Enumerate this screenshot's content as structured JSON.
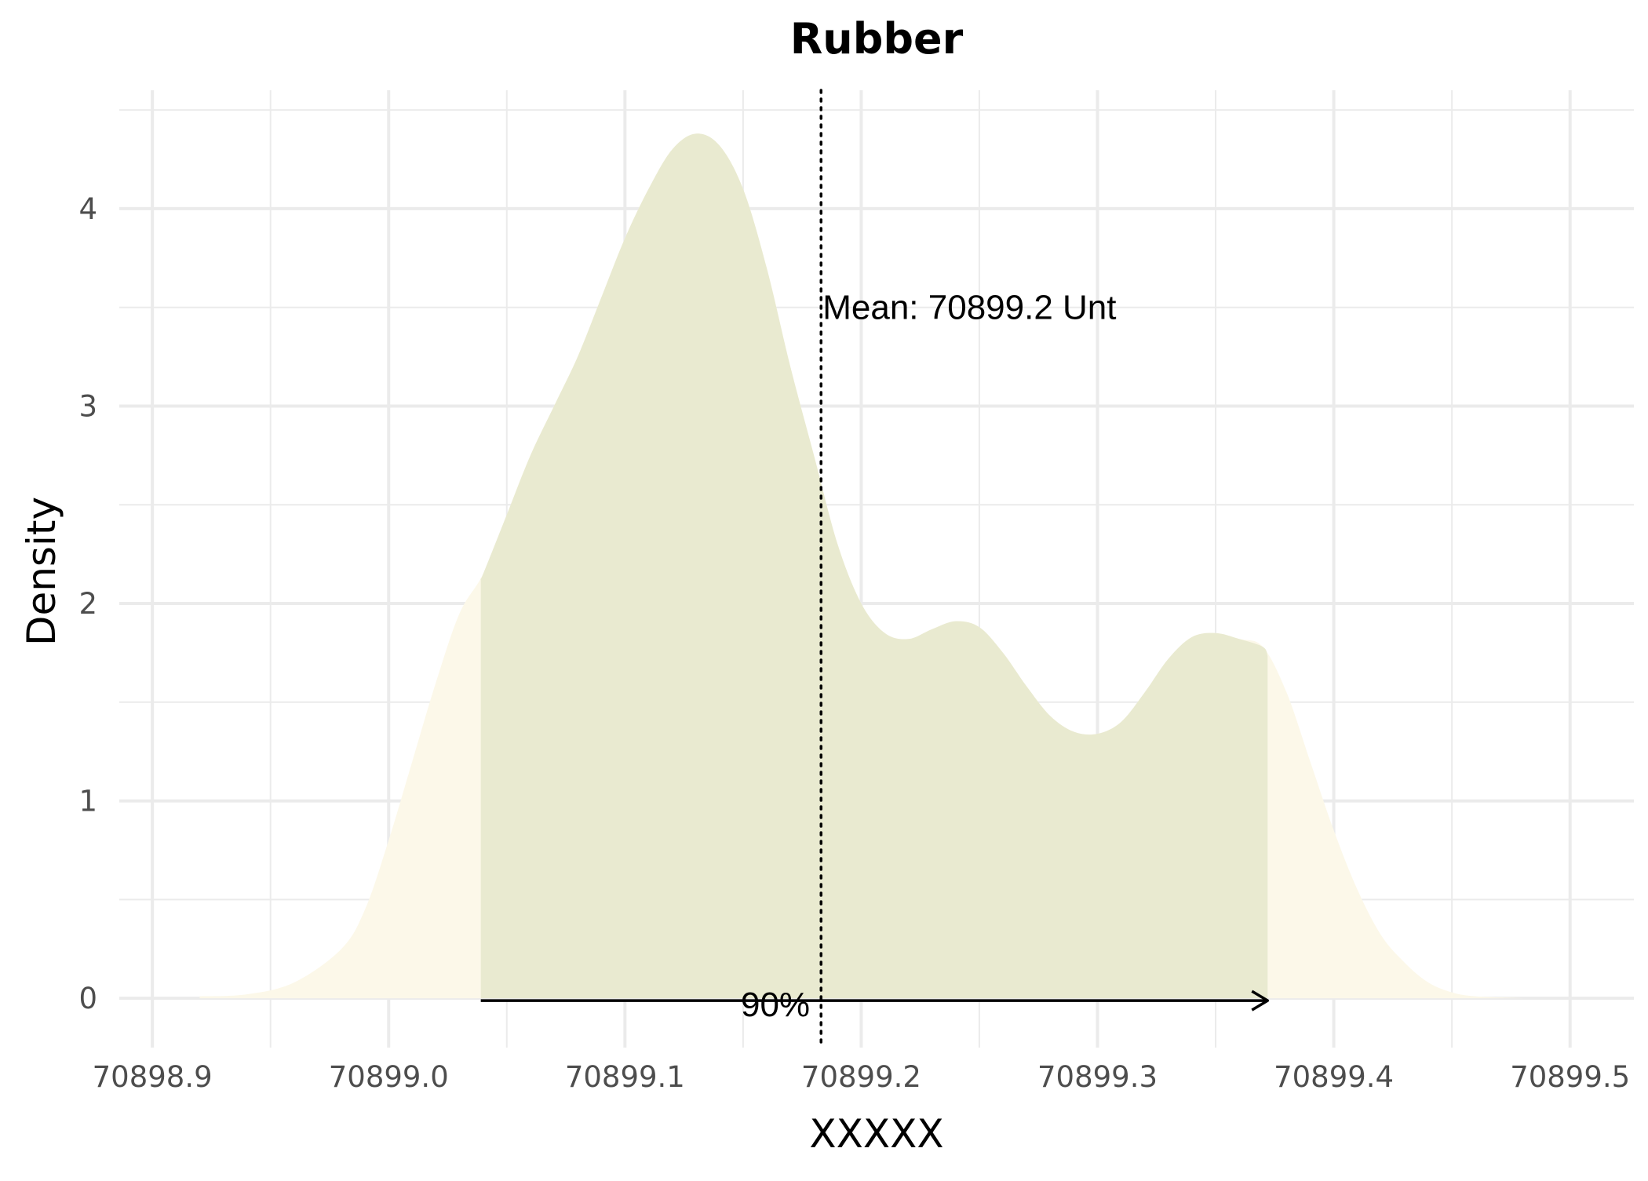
{
  "chart_data": {
    "type": "area",
    "title": "Rubber",
    "xlabel": "XXXXX",
    "ylabel": "Density",
    "xlim": [
      70898.886,
      70899.527
    ],
    "ylim": [
      -0.25,
      4.6
    ],
    "x_ticks": [
      70898.9,
      70899.0,
      70899.1,
      70899.2,
      70899.3,
      70899.4,
      70899.5
    ],
    "x_tick_labels": [
      "70898.9",
      "70899.0",
      "70899.1",
      "70899.2",
      "70899.3",
      "70899.4",
      "70899.5"
    ],
    "y_ticks": [
      0,
      1,
      2,
      3,
      4
    ],
    "y_tick_labels": [
      "0",
      "1",
      "2",
      "3",
      "4"
    ],
    "grid": true,
    "density": {
      "x": [
        70898.92,
        70898.94,
        70898.96,
        70898.98,
        70898.99,
        70899.0,
        70899.01,
        70899.02,
        70899.03,
        70899.04,
        70899.05,
        70899.06,
        70899.07,
        70899.08,
        70899.09,
        70899.1,
        70899.11,
        70899.12,
        70899.13,
        70899.14,
        70899.15,
        70899.16,
        70899.17,
        70899.18,
        70899.19,
        70899.2,
        70899.21,
        70899.22,
        70899.23,
        70899.24,
        70899.25,
        70899.26,
        70899.27,
        70899.28,
        70899.29,
        70899.3,
        70899.31,
        70899.32,
        70899.33,
        70899.34,
        70899.35,
        70899.36,
        70899.37,
        70899.38,
        70899.39,
        70899.4,
        70899.41,
        70899.42,
        70899.43,
        70899.44,
        70899.45,
        70899.46,
        70899.48
      ],
      "y": [
        0.01,
        0.02,
        0.08,
        0.25,
        0.45,
        0.8,
        1.2,
        1.6,
        1.95,
        2.15,
        2.45,
        2.75,
        3.0,
        3.25,
        3.55,
        3.85,
        4.1,
        4.3,
        4.38,
        4.32,
        4.1,
        3.7,
        3.2,
        2.75,
        2.3,
        2.0,
        1.85,
        1.82,
        1.87,
        1.91,
        1.88,
        1.75,
        1.58,
        1.43,
        1.35,
        1.34,
        1.4,
        1.55,
        1.72,
        1.83,
        1.85,
        1.82,
        1.78,
        1.55,
        1.2,
        0.85,
        0.55,
        0.32,
        0.18,
        0.08,
        0.03,
        0.01,
        0.0
      ]
    },
    "interval": {
      "low": 70899.039,
      "high": 70899.372,
      "label": "90%"
    },
    "mean": {
      "value": 70899.183,
      "label": "Mean: 70899.2 Unt"
    },
    "colors": {
      "outer_fill": "#fcf8e9",
      "inner_fill": "#e9ead0",
      "grid": "#ebebeb",
      "text": "#000000",
      "tick_text": "#4d4d4d"
    }
  }
}
